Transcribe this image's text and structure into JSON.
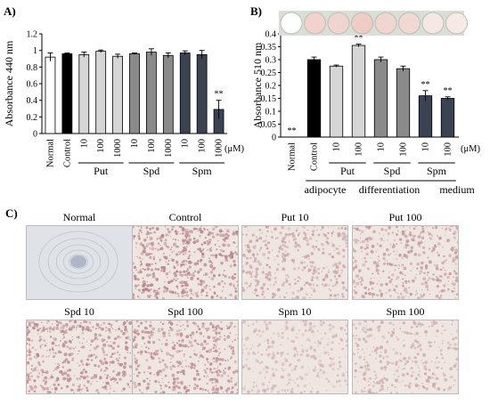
{
  "chart_data": [
    {
      "panel": "A)",
      "type": "bar",
      "ylabel": "Absorbance 440 nm",
      "ylim": [
        0,
        1.2
      ],
      "yticks": [
        0,
        0.2,
        0.4,
        0.6,
        0.8,
        1,
        1.2
      ],
      "unit_label": "(μM)",
      "bars": [
        {
          "label": "Normal",
          "value": 0.92,
          "err": 0.05,
          "color": "#ffffff",
          "sig": ""
        },
        {
          "label": "Control",
          "value": 0.96,
          "err": 0.01,
          "color": "#000000",
          "sig": ""
        },
        {
          "label": "10",
          "value": 0.95,
          "err": 0.03,
          "color": "#d6d6d6",
          "sig": ""
        },
        {
          "label": "100",
          "value": 0.99,
          "err": 0.015,
          "color": "#d6d6d6",
          "sig": ""
        },
        {
          "label": "1000",
          "value": 0.93,
          "err": 0.025,
          "color": "#d6d6d6",
          "sig": ""
        },
        {
          "label": "10",
          "value": 0.96,
          "err": 0.01,
          "color": "#8a8a8a",
          "sig": ""
        },
        {
          "label": "100",
          "value": 0.98,
          "err": 0.04,
          "color": "#8a8a8a",
          "sig": ""
        },
        {
          "label": "1000",
          "value": 0.94,
          "err": 0.03,
          "color": "#8a8a8a",
          "sig": ""
        },
        {
          "label": "10",
          "value": 0.97,
          "err": 0.025,
          "color": "#3b4353",
          "sig": ""
        },
        {
          "label": "100",
          "value": 0.95,
          "err": 0.05,
          "color": "#3b4353",
          "sig": ""
        },
        {
          "label": "1000",
          "value": 0.29,
          "err": 0.11,
          "color": "#3b4353",
          "sig": "**"
        }
      ],
      "groups": [
        {
          "label": "Put",
          "from": 2,
          "to": 4
        },
        {
          "label": "Spd",
          "from": 5,
          "to": 7
        },
        {
          "label": "Spm",
          "from": 8,
          "to": 10
        }
      ]
    },
    {
      "panel": "B)",
      "type": "bar",
      "ylabel": "Absorbance 510 nm",
      "ylim": [
        0,
        0.4
      ],
      "yticks": [
        0,
        0.05,
        0.1,
        0.15,
        0.2,
        0.25,
        0.3,
        0.35,
        0.4
      ],
      "unit_label": "(μM)",
      "bars": [
        {
          "label": "Normal",
          "value": 0.0,
          "err": 0.0,
          "color": "#ffffff",
          "sig": "**"
        },
        {
          "label": "Control",
          "value": 0.3,
          "err": 0.01,
          "color": "#000000",
          "sig": ""
        },
        {
          "label": "10",
          "value": 0.275,
          "err": 0.004,
          "color": "#d6d6d6",
          "sig": ""
        },
        {
          "label": "100",
          "value": 0.355,
          "err": 0.005,
          "color": "#d6d6d6",
          "sig": "**"
        },
        {
          "label": "10",
          "value": 0.3,
          "err": 0.01,
          "color": "#8a8a8a",
          "sig": ""
        },
        {
          "label": "100",
          "value": 0.265,
          "err": 0.01,
          "color": "#8a8a8a",
          "sig": ""
        },
        {
          "label": "10",
          "value": 0.16,
          "err": 0.02,
          "color": "#3b4353",
          "sig": "**"
        },
        {
          "label": "100",
          "value": 0.15,
          "err": 0.006,
          "color": "#3b4353",
          "sig": "**"
        }
      ],
      "groups": [
        {
          "label": "Put",
          "from": 2,
          "to": 3
        },
        {
          "label": "Spd",
          "from": 4,
          "to": 5
        },
        {
          "label": "Spm",
          "from": 6,
          "to": 7
        }
      ],
      "footer": [
        "adipocyte",
        "differentiation",
        "medium"
      ],
      "well_strip": [
        "#ffffff",
        "#f2d2cc",
        "#f0d4cf",
        "#efcdc6",
        "#f0d5d0",
        "#f1d8d3",
        "#f6e7e4",
        "#f7e9e6"
      ]
    }
  ],
  "panel_c": {
    "label": "C)",
    "images": [
      {
        "title": "Normal",
        "tone": "#c8ccd2"
      },
      {
        "title": "Control",
        "tone": "#b8858c"
      },
      {
        "title": "Put 10",
        "tone": "#c9a3a8"
      },
      {
        "title": "Put 100",
        "tone": "#c49aa0"
      },
      {
        "title": "Spd 10",
        "tone": "#bc8a90"
      },
      {
        "title": "Spd 100",
        "tone": "#bf8e94"
      },
      {
        "title": "Spm 10",
        "tone": "#d3b6ba"
      },
      {
        "title": "Spm 100",
        "tone": "#ceadb2"
      }
    ]
  }
}
